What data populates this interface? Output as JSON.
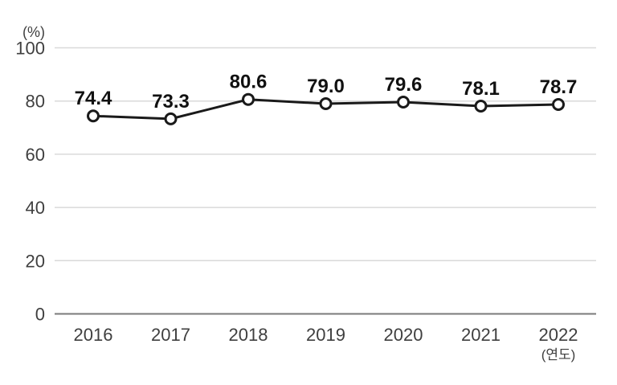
{
  "chart_data": {
    "type": "line",
    "title": "",
    "categories": [
      "2016",
      "2017",
      "2018",
      "2019",
      "2020",
      "2021",
      "2022"
    ],
    "values": [
      74.4,
      73.3,
      80.6,
      79.0,
      79.6,
      78.1,
      78.7
    ],
    "data_labels": [
      "74.4",
      "73.3",
      "80.6",
      "79.0",
      "79.6",
      "78.1",
      "78.7"
    ],
    "ylabel": "(%)",
    "xlabel": "(연도)",
    "ylim": [
      0,
      100
    ],
    "yticks": [
      0,
      20,
      40,
      60,
      80,
      100
    ],
    "grid": "horizontal-only",
    "legend": "none",
    "colors": {
      "line": "#1a1a1a",
      "marker_fill": "#ffffff",
      "marker_stroke": "#1a1a1a",
      "gridline": "#d9d9d9",
      "axis_line": "#7a7a7a",
      "tick_text": "#3f3f3f",
      "label_text": "#111111",
      "background": "#ffffff"
    }
  }
}
